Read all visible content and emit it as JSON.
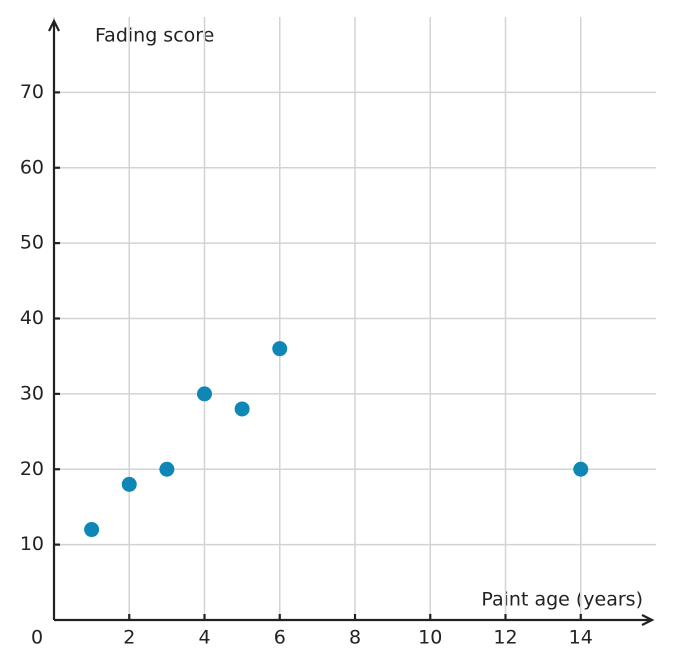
{
  "chart_data": {
    "type": "scatter",
    "x_label": "Paint age (years)",
    "y_label": "Fading score",
    "x": [
      1,
      2,
      3,
      4,
      5,
      6,
      14
    ],
    "values": [
      12,
      18,
      20,
      30,
      28,
      36,
      20
    ],
    "color": "#0e87b7",
    "xlim": [
      0,
      16
    ],
    "ylim": [
      0,
      80
    ],
    "xticks": [
      0,
      2,
      4,
      6,
      8,
      10,
      12,
      14
    ],
    "yticks": [
      10,
      20,
      30,
      40,
      50,
      60,
      70
    ],
    "grid": true
  }
}
